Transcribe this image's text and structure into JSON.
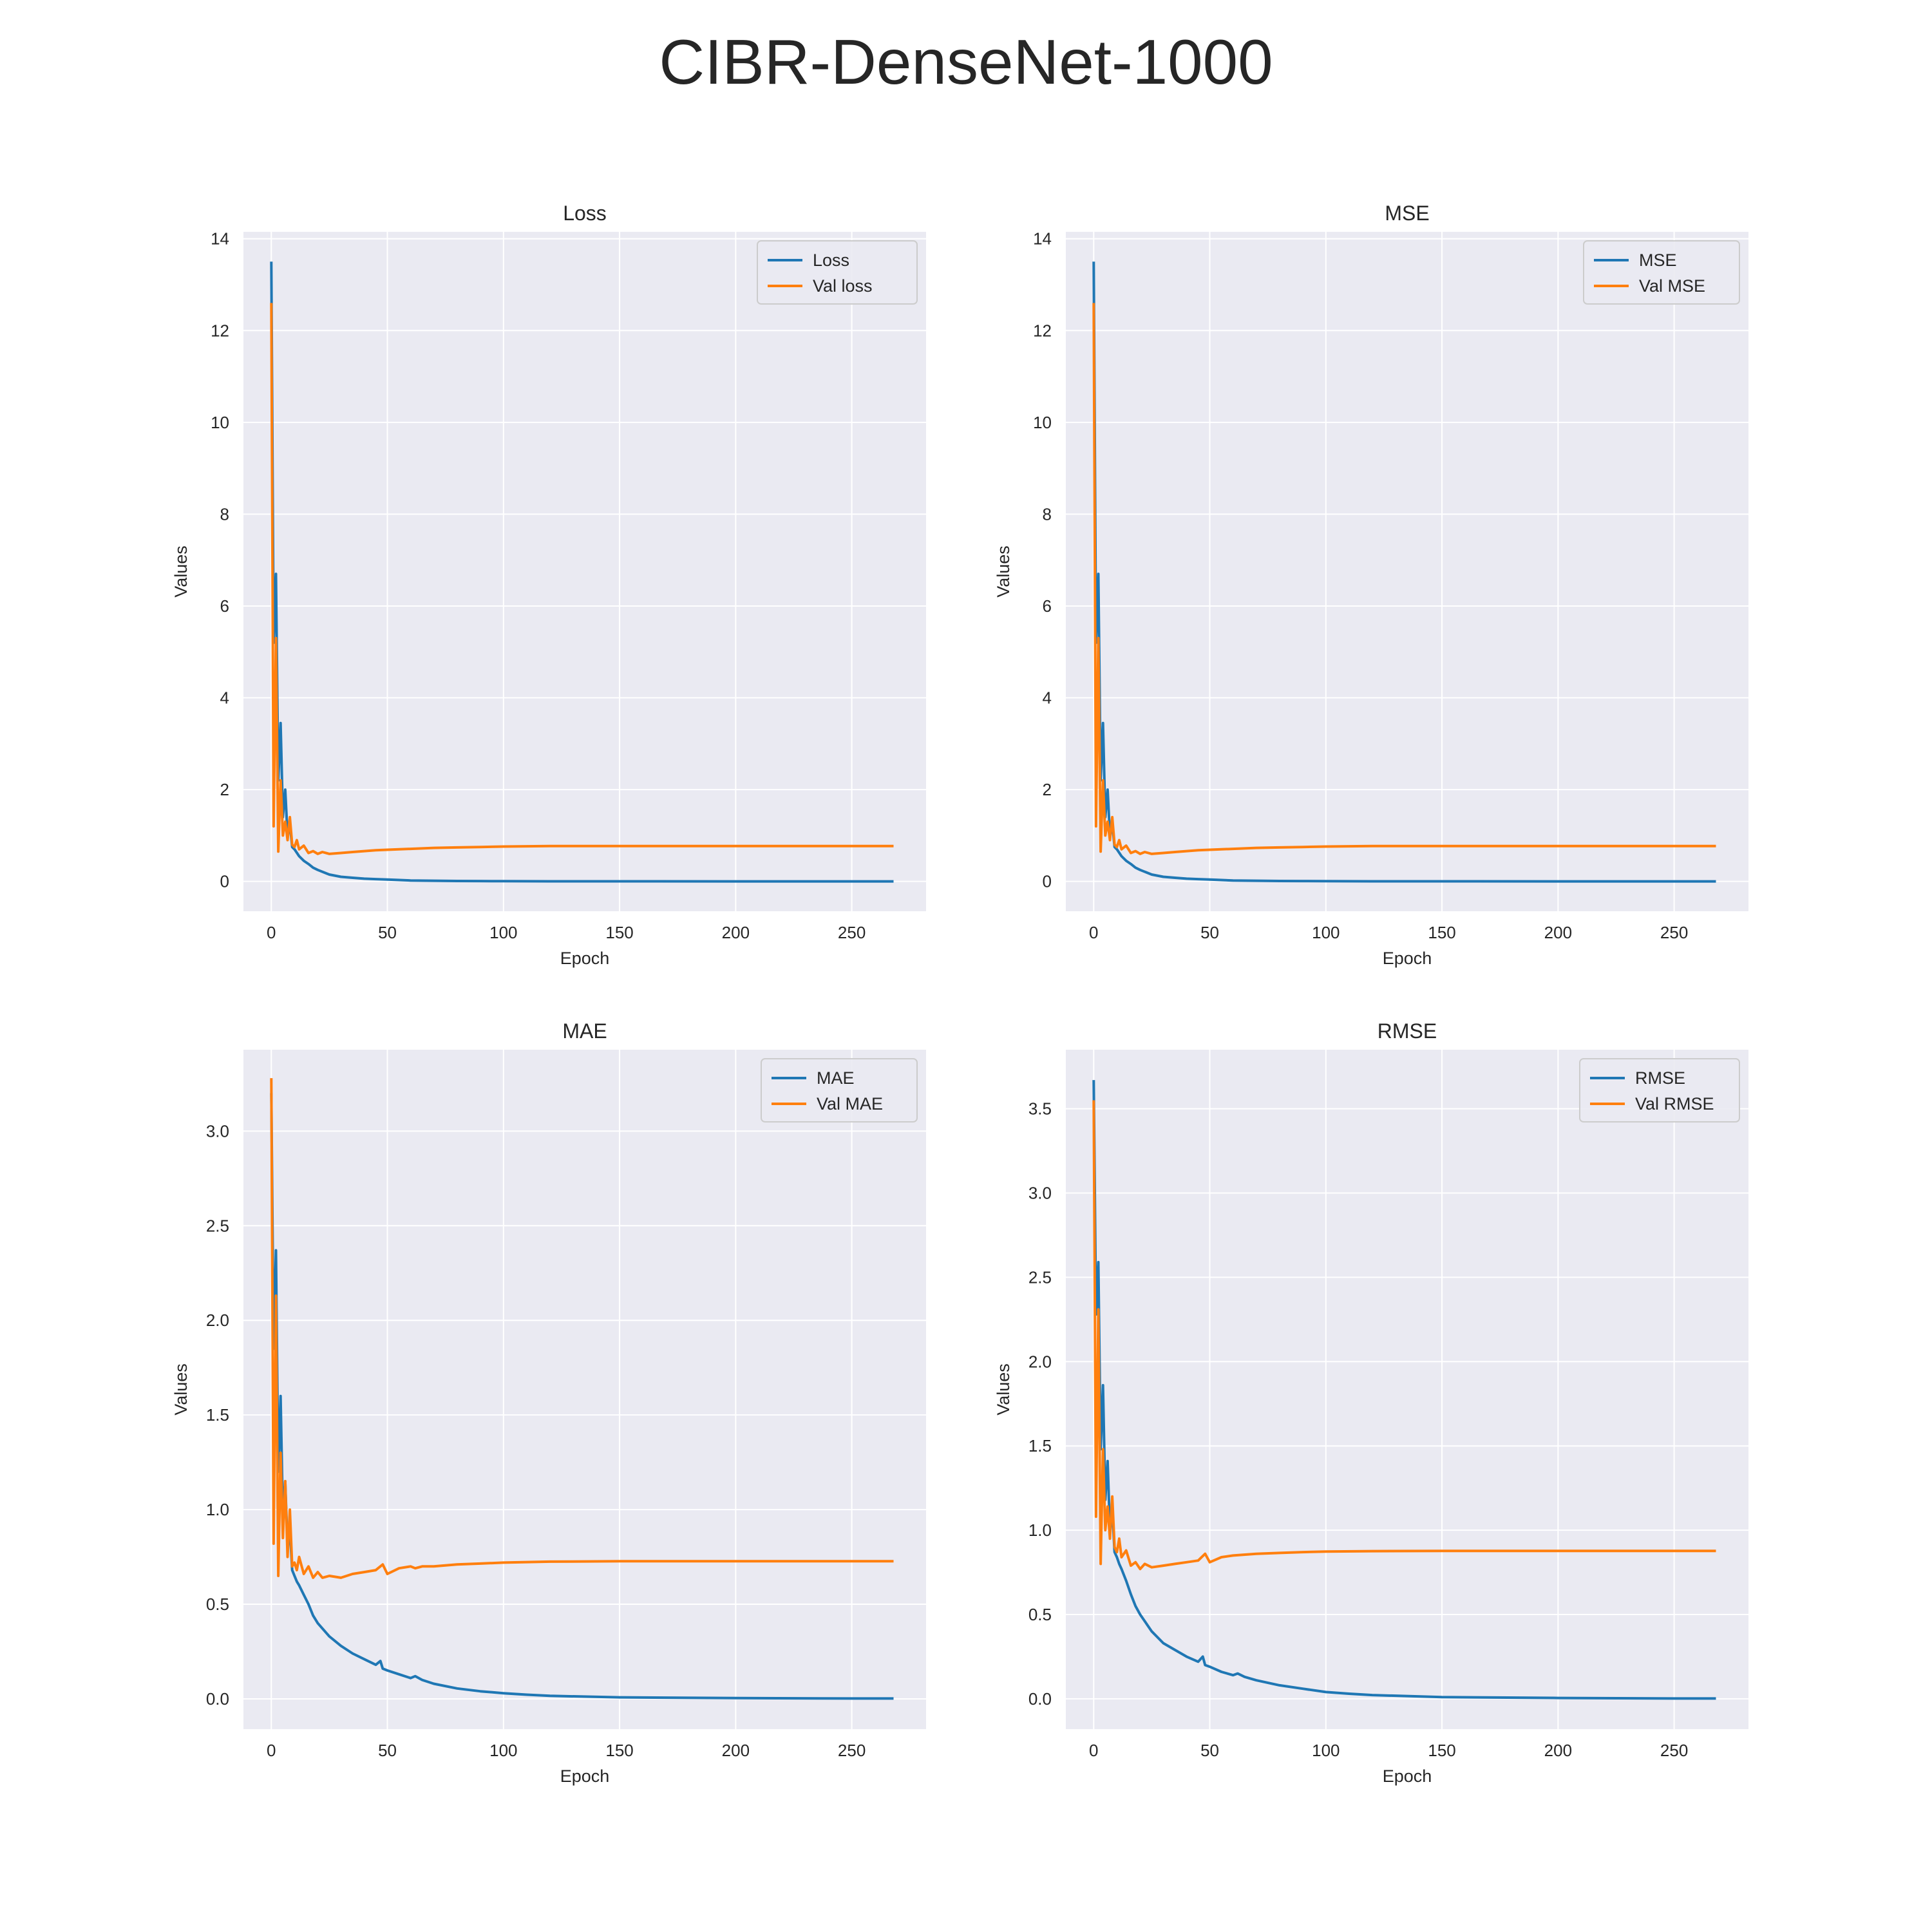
{
  "figure": {
    "title": "CIBR-DenseNet-1000"
  },
  "colors": {
    "background": "#eaeaf2",
    "grid": "#ffffff",
    "train": "#1f77b4",
    "val": "#ff7f0e",
    "text": "#262626"
  },
  "chart_data": [
    {
      "type": "line",
      "title": "Loss",
      "xlabel": "Epoch",
      "ylabel": "Values",
      "xlim": [
        -12,
        282
      ],
      "ylim": [
        -0.65,
        14.15
      ],
      "xticks": [
        0,
        50,
        100,
        150,
        200,
        250
      ],
      "yticks": [
        0,
        2,
        4,
        6,
        8,
        10,
        12,
        14
      ],
      "ytick_labels": [
        "0",
        "2",
        "4",
        "6",
        "8",
        "10",
        "12",
        "14"
      ],
      "grid": true,
      "legend": "top-right",
      "series": [
        {
          "name": "Loss",
          "color": "#1f77b4",
          "x": [
            0,
            1,
            2,
            3,
            4,
            5,
            6,
            7,
            8,
            9,
            10,
            12,
            14,
            16,
            18,
            20,
            25,
            30,
            35,
            40,
            45,
            50,
            60,
            70,
            80,
            90,
            100,
            120,
            150,
            200,
            250,
            268
          ],
          "y": [
            13.5,
            5.2,
            6.7,
            2.2,
            3.45,
            1.4,
            2.0,
            1.0,
            1.25,
            0.75,
            0.7,
            0.55,
            0.45,
            0.38,
            0.3,
            0.25,
            0.15,
            0.1,
            0.08,
            0.06,
            0.05,
            0.04,
            0.02,
            0.015,
            0.01,
            0.008,
            0.005,
            0.003,
            0.002,
            0.001,
            0.0005,
            0.0003
          ]
        },
        {
          "name": "Val loss",
          "color": "#ff7f0e",
          "x": [
            0,
            1,
            2,
            3,
            4,
            5,
            6,
            7,
            8,
            9,
            10,
            11,
            12,
            14,
            16,
            18,
            20,
            22,
            25,
            30,
            35,
            40,
            45,
            50,
            55,
            60,
            70,
            80,
            90,
            100,
            120,
            150,
            200,
            250,
            268
          ],
          "y": [
            12.6,
            1.2,
            5.3,
            0.65,
            2.2,
            1.0,
            1.3,
            0.9,
            1.4,
            0.8,
            0.75,
            0.9,
            0.7,
            0.78,
            0.62,
            0.66,
            0.6,
            0.64,
            0.6,
            0.62,
            0.64,
            0.66,
            0.68,
            0.69,
            0.7,
            0.71,
            0.73,
            0.74,
            0.75,
            0.76,
            0.77,
            0.77,
            0.77,
            0.77,
            0.77
          ]
        }
      ]
    },
    {
      "type": "line",
      "title": "MSE",
      "xlabel": "Epoch",
      "ylabel": "Values",
      "xlim": [
        -12,
        282
      ],
      "ylim": [
        -0.65,
        14.15
      ],
      "xticks": [
        0,
        50,
        100,
        150,
        200,
        250
      ],
      "yticks": [
        0,
        2,
        4,
        6,
        8,
        10,
        12,
        14
      ],
      "ytick_labels": [
        "0",
        "2",
        "4",
        "6",
        "8",
        "10",
        "12",
        "14"
      ],
      "grid": true,
      "legend": "top-right",
      "series": [
        {
          "name": "MSE",
          "color": "#1f77b4",
          "x": [
            0,
            1,
            2,
            3,
            4,
            5,
            6,
            7,
            8,
            9,
            10,
            12,
            14,
            16,
            18,
            20,
            25,
            30,
            35,
            40,
            45,
            50,
            60,
            70,
            80,
            90,
            100,
            120,
            150,
            200,
            250,
            268
          ],
          "y": [
            13.5,
            5.2,
            6.7,
            2.2,
            3.45,
            1.4,
            2.0,
            1.0,
            1.25,
            0.75,
            0.7,
            0.55,
            0.45,
            0.38,
            0.3,
            0.25,
            0.15,
            0.1,
            0.08,
            0.06,
            0.05,
            0.04,
            0.02,
            0.015,
            0.01,
            0.008,
            0.005,
            0.003,
            0.002,
            0.001,
            0.0005,
            0.0003
          ]
        },
        {
          "name": "Val MSE",
          "color": "#ff7f0e",
          "x": [
            0,
            1,
            2,
            3,
            4,
            5,
            6,
            7,
            8,
            9,
            10,
            11,
            12,
            14,
            16,
            18,
            20,
            22,
            25,
            30,
            35,
            40,
            45,
            50,
            55,
            60,
            70,
            80,
            90,
            100,
            120,
            150,
            200,
            250,
            268
          ],
          "y": [
            12.6,
            1.2,
            5.3,
            0.65,
            2.2,
            1.0,
            1.3,
            0.9,
            1.4,
            0.8,
            0.75,
            0.9,
            0.7,
            0.78,
            0.62,
            0.66,
            0.6,
            0.64,
            0.6,
            0.62,
            0.64,
            0.66,
            0.68,
            0.69,
            0.7,
            0.71,
            0.73,
            0.74,
            0.75,
            0.76,
            0.77,
            0.77,
            0.77,
            0.77,
            0.77
          ]
        }
      ]
    },
    {
      "type": "line",
      "title": "MAE",
      "xlabel": "Epoch",
      "ylabel": "Values",
      "xlim": [
        -12,
        282
      ],
      "ylim": [
        -0.16,
        3.43
      ],
      "xticks": [
        0,
        50,
        100,
        150,
        200,
        250
      ],
      "yticks": [
        0,
        0.5,
        1,
        1.5,
        2,
        2.5,
        3
      ],
      "ytick_labels": [
        "0.0",
        "0.5",
        "1.0",
        "1.5",
        "2.0",
        "2.5",
        "3.0"
      ],
      "grid": true,
      "legend": "top-right",
      "series": [
        {
          "name": "MAE",
          "color": "#1f77b4",
          "x": [
            0,
            1,
            2,
            3,
            4,
            5,
            6,
            7,
            8,
            9,
            10,
            11,
            12,
            14,
            16,
            18,
            20,
            25,
            30,
            35,
            40,
            45,
            47,
            48,
            50,
            55,
            60,
            62,
            65,
            70,
            80,
            90,
            100,
            110,
            120,
            150,
            200,
            250,
            268
          ],
          "y": [
            3.2,
            1.85,
            2.37,
            1.2,
            1.6,
            0.95,
            1.15,
            0.8,
            0.9,
            0.68,
            0.65,
            0.62,
            0.6,
            0.55,
            0.5,
            0.44,
            0.4,
            0.33,
            0.28,
            0.24,
            0.21,
            0.18,
            0.2,
            0.16,
            0.15,
            0.13,
            0.11,
            0.12,
            0.1,
            0.08,
            0.055,
            0.04,
            0.03,
            0.022,
            0.016,
            0.008,
            0.004,
            0.002,
            0.002
          ]
        },
        {
          "name": "Val MAE",
          "color": "#ff7f0e",
          "x": [
            0,
            1,
            2,
            3,
            4,
            5,
            6,
            7,
            8,
            9,
            10,
            11,
            12,
            14,
            16,
            18,
            20,
            22,
            25,
            30,
            35,
            40,
            45,
            48,
            50,
            55,
            60,
            62,
            65,
            70,
            80,
            90,
            100,
            120,
            150,
            200,
            250,
            268
          ],
          "y": [
            3.28,
            0.82,
            2.13,
            0.65,
            1.3,
            0.85,
            1.15,
            0.75,
            1.0,
            0.7,
            0.72,
            0.68,
            0.75,
            0.66,
            0.7,
            0.64,
            0.67,
            0.64,
            0.65,
            0.64,
            0.66,
            0.67,
            0.68,
            0.71,
            0.66,
            0.69,
            0.7,
            0.69,
            0.7,
            0.7,
            0.71,
            0.715,
            0.72,
            0.725,
            0.727,
            0.727,
            0.727,
            0.727
          ]
        }
      ]
    },
    {
      "type": "line",
      "title": "RMSE",
      "xlabel": "Epoch",
      "ylabel": "Values",
      "xlim": [
        -12,
        282
      ],
      "ylim": [
        -0.18,
        3.85
      ],
      "xticks": [
        0,
        50,
        100,
        150,
        200,
        250
      ],
      "yticks": [
        0,
        0.5,
        1,
        1.5,
        2,
        2.5,
        3,
        3.5
      ],
      "ytick_labels": [
        "0.0",
        "0.5",
        "1.0",
        "1.5",
        "2.0",
        "2.5",
        "3.0",
        "3.5"
      ],
      "grid": true,
      "legend": "top-right",
      "series": [
        {
          "name": "RMSE",
          "color": "#1f77b4",
          "x": [
            0,
            1,
            2,
            3,
            4,
            5,
            6,
            7,
            8,
            9,
            10,
            11,
            12,
            14,
            16,
            18,
            20,
            25,
            30,
            35,
            40,
            45,
            47,
            48,
            50,
            55,
            60,
            62,
            65,
            70,
            80,
            90,
            100,
            110,
            120,
            150,
            200,
            250,
            268
          ],
          "y": [
            3.67,
            2.28,
            2.59,
            1.48,
            1.86,
            1.18,
            1.41,
            1.0,
            1.12,
            0.87,
            0.84,
            0.8,
            0.77,
            0.7,
            0.62,
            0.55,
            0.5,
            0.4,
            0.33,
            0.29,
            0.25,
            0.22,
            0.25,
            0.2,
            0.19,
            0.16,
            0.14,
            0.15,
            0.13,
            0.11,
            0.08,
            0.06,
            0.04,
            0.03,
            0.022,
            0.01,
            0.005,
            0.002,
            0.002
          ]
        },
        {
          "name": "Val RMSE",
          "color": "#ff7f0e",
          "x": [
            0,
            1,
            2,
            3,
            4,
            5,
            6,
            7,
            8,
            9,
            10,
            11,
            12,
            14,
            16,
            18,
            20,
            22,
            25,
            30,
            35,
            40,
            45,
            48,
            50,
            55,
            60,
            70,
            80,
            90,
            100,
            120,
            150,
            200,
            250,
            268
          ],
          "y": [
            3.55,
            1.08,
            2.31,
            0.8,
            1.48,
            1.0,
            1.14,
            0.95,
            1.2,
            0.9,
            0.87,
            0.95,
            0.84,
            0.88,
            0.79,
            0.81,
            0.77,
            0.8,
            0.78,
            0.79,
            0.8,
            0.81,
            0.82,
            0.86,
            0.81,
            0.84,
            0.85,
            0.86,
            0.865,
            0.87,
            0.873,
            0.876,
            0.877,
            0.877,
            0.877,
            0.877
          ]
        }
      ]
    }
  ]
}
